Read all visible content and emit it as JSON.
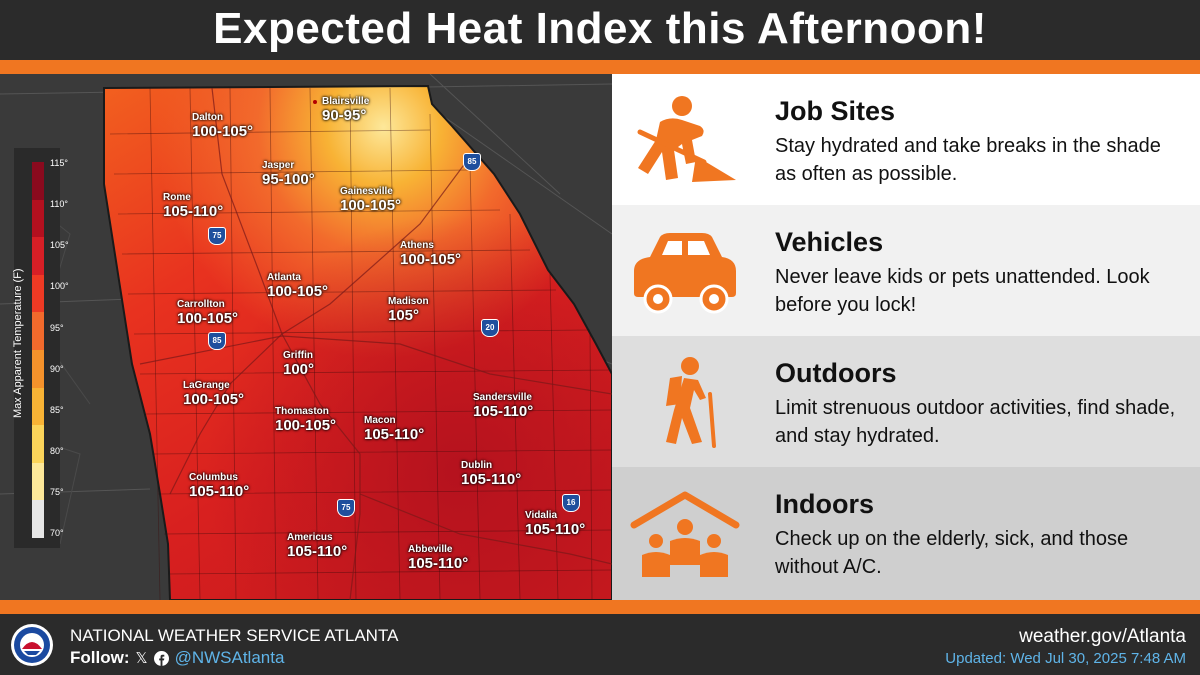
{
  "header": {
    "title": "Expected Heat Index this Afternoon!"
  },
  "map": {
    "legend": {
      "title": "Max Apparent Temperature (F)",
      "ticks": [
        "115°",
        "110°",
        "105°",
        "100°",
        "95°",
        "90°",
        "85°",
        "80°",
        "75°",
        "70°"
      ],
      "colors": [
        "#8a0a1e",
        "#b3101f",
        "#d61f26",
        "#ee3a24",
        "#f26a2c",
        "#f5922b",
        "#f8b335",
        "#fbd45a",
        "#fde89a",
        "#e6e6e6"
      ]
    },
    "locations": [
      {
        "city": "Dalton",
        "value": "100-105°"
      },
      {
        "city": "Blairsville",
        "value": "90-95°"
      },
      {
        "city": "Jasper",
        "value": "95-100°"
      },
      {
        "city": "Rome",
        "value": "105-110°"
      },
      {
        "city": "Gainesville",
        "value": "100-105°"
      },
      {
        "city": "Athens",
        "value": "100-105°"
      },
      {
        "city": "Atlanta",
        "value": "100-105°"
      },
      {
        "city": "Carrollton",
        "value": "100-105°"
      },
      {
        "city": "Madison",
        "value": "105°"
      },
      {
        "city": "Griffin",
        "value": "100°"
      },
      {
        "city": "LaGrange",
        "value": "100-105°"
      },
      {
        "city": "Thomaston",
        "value": "100-105°"
      },
      {
        "city": "Macon",
        "value": "105-110°"
      },
      {
        "city": "Sandersville",
        "value": "105-110°"
      },
      {
        "city": "Dublin",
        "value": "105-110°"
      },
      {
        "city": "Columbus",
        "value": "105-110°"
      },
      {
        "city": "Vidalia",
        "value": "105-110°"
      },
      {
        "city": "Americus",
        "value": "105-110°"
      },
      {
        "city": "Abbeville",
        "value": "105-110°"
      }
    ],
    "interstates": [
      "85",
      "75",
      "85",
      "20",
      "75",
      "16"
    ]
  },
  "tips": [
    {
      "title": "Job Sites",
      "text": "Stay hydrated and take breaks in the shade as often as possible.",
      "icon": "worker-shovel-icon",
      "bg": "#ffffff"
    },
    {
      "title": "Vehicles",
      "text": "Never leave kids or pets unattended. Look before you lock!",
      "icon": "car-icon",
      "bg": "#f1f1f1"
    },
    {
      "title": "Outdoors",
      "text": "Limit strenuous outdoor activities, find shade, and stay hydrated.",
      "icon": "hiker-icon",
      "bg": "#dedede"
    },
    {
      "title": "Indoors",
      "text": "Check up on the elderly, sick, and those without A/C.",
      "icon": "family-shelter-icon",
      "bg": "#cfcfcf"
    }
  ],
  "footer": {
    "org": "NATIONAL WEATHER SERVICE ATLANTA",
    "follow_label": "Follow:",
    "handle": "@NWSAtlanta",
    "site": "weather.gov/Atlanta",
    "updated": "Updated: Wed Jul 30, 2025 7:48 AM"
  },
  "colors": {
    "accent": "#f07621",
    "icon": "#f07621",
    "link": "#5fb4e8",
    "dark": "#2b2b2b"
  }
}
